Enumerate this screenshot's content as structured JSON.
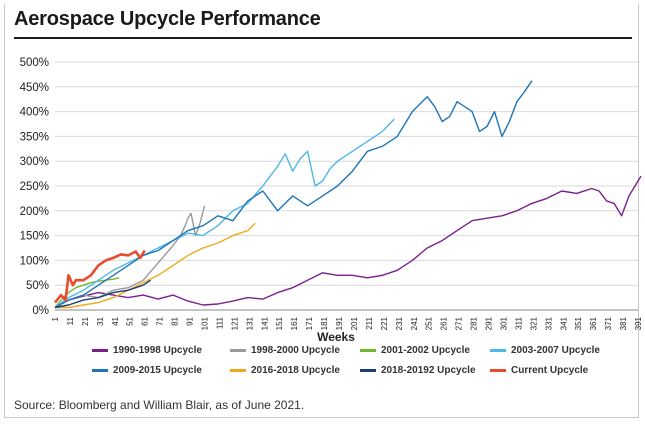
{
  "chart_data": {
    "type": "line",
    "title": "Aerospace Upcycle Performance",
    "xlabel": "Weeks",
    "ylabel": "",
    "xlim": [
      1,
      391
    ],
    "ylim": [
      0,
      500
    ],
    "x_ticks": [
      1,
      11,
      21,
      31,
      41,
      51,
      61,
      71,
      81,
      91,
      101,
      111,
      121,
      131,
      141,
      151,
      161,
      171,
      181,
      191,
      201,
      211,
      221,
      231,
      241,
      251,
      261,
      271,
      281,
      291,
      301,
      311,
      321,
      331,
      341,
      351,
      361,
      371,
      381,
      391
    ],
    "y_ticks": [
      0,
      50,
      100,
      150,
      200,
      250,
      300,
      350,
      400,
      450,
      500
    ],
    "y_tick_labels": [
      "0%",
      "50%",
      "100%",
      "150%",
      "200%",
      "250%",
      "300%",
      "350%",
      "400%",
      "450%",
      "500%"
    ],
    "grid": true,
    "legend_position": "bottom",
    "series": [
      {
        "name": "1990-1998 Upcycle",
        "color": "#7b1f8e",
        "x": [
          1,
          10,
          20,
          30,
          40,
          50,
          60,
          70,
          80,
          90,
          100,
          110,
          120,
          130,
          140,
          150,
          160,
          170,
          180,
          190,
          200,
          210,
          220,
          230,
          240,
          250,
          260,
          270,
          280,
          290,
          300,
          310,
          320,
          330,
          340,
          350,
          360,
          365,
          370,
          375,
          380,
          385,
          390,
          393
        ],
        "y": [
          5,
          20,
          28,
          35,
          30,
          25,
          30,
          22,
          30,
          18,
          10,
          12,
          18,
          25,
          22,
          35,
          45,
          60,
          75,
          70,
          70,
          65,
          70,
          80,
          100,
          125,
          140,
          160,
          180,
          185,
          190,
          200,
          215,
          225,
          240,
          235,
          245,
          240,
          220,
          215,
          190,
          230,
          255,
          270
        ]
      },
      {
        "name": "1998-2000 Upcycle",
        "color": "#9a9a9a",
        "x": [
          1,
          10,
          20,
          30,
          40,
          50,
          60,
          70,
          80,
          85,
          88,
          90,
          92,
          95,
          98,
          101
        ],
        "y": [
          5,
          20,
          30,
          25,
          40,
          45,
          60,
          95,
          130,
          150,
          170,
          185,
          195,
          150,
          175,
          210
        ]
      },
      {
        "name": "2001-2002 Upcycle",
        "color": "#76b82a",
        "x": [
          1,
          5,
          10,
          15,
          20,
          25,
          30,
          35,
          40,
          44
        ],
        "y": [
          5,
          20,
          35,
          45,
          50,
          55,
          58,
          60,
          62,
          65
        ]
      },
      {
        "name": "2003-2007 Upcycle",
        "color": "#4db7e8",
        "x": [
          1,
          10,
          20,
          30,
          40,
          50,
          60,
          70,
          80,
          90,
          100,
          110,
          120,
          130,
          140,
          150,
          155,
          160,
          165,
          170,
          175,
          180,
          185,
          190,
          195,
          200,
          210,
          220,
          228
        ],
        "y": [
          5,
          25,
          40,
          60,
          80,
          95,
          110,
          125,
          140,
          155,
          150,
          170,
          200,
          215,
          250,
          290,
          315,
          280,
          305,
          320,
          250,
          260,
          285,
          300,
          310,
          320,
          340,
          360,
          385
        ]
      },
      {
        "name": "2009-2015 Upcycle",
        "color": "#1f75b8",
        "x": [
          1,
          10,
          20,
          30,
          40,
          50,
          60,
          70,
          80,
          90,
          100,
          110,
          120,
          130,
          140,
          150,
          160,
          170,
          180,
          190,
          200,
          210,
          220,
          230,
          240,
          250,
          255,
          260,
          265,
          270,
          275,
          280,
          285,
          290,
          295,
          300,
          305,
          310,
          315,
          320
        ],
        "y": [
          5,
          20,
          30,
          50,
          70,
          90,
          110,
          120,
          140,
          160,
          170,
          190,
          180,
          220,
          240,
          200,
          230,
          210,
          230,
          250,
          280,
          320,
          330,
          350,
          400,
          430,
          410,
          380,
          390,
          420,
          410,
          400,
          360,
          370,
          400,
          350,
          380,
          420,
          440,
          462
        ]
      },
      {
        "name": "2016-2018 Upcycle",
        "color": "#f0a81c",
        "x": [
          1,
          10,
          20,
          30,
          40,
          50,
          60,
          70,
          80,
          90,
          100,
          110,
          120,
          130,
          135
        ],
        "y": [
          5,
          5,
          10,
          15,
          25,
          40,
          55,
          70,
          90,
          110,
          125,
          135,
          150,
          160,
          175
        ]
      },
      {
        "name": "2018-20192 Upcycle",
        "color": "#1c3f75",
        "x": [
          1,
          10,
          20,
          30,
          40,
          50,
          55,
          60,
          65
        ],
        "y": [
          5,
          10,
          20,
          25,
          35,
          40,
          45,
          50,
          60
        ]
      },
      {
        "name": "Current Upcycle",
        "color": "#e84c2b",
        "x": [
          1,
          5,
          8,
          10,
          13,
          15,
          20,
          25,
          30,
          35,
          40,
          45,
          50,
          55,
          58,
          60,
          61
        ],
        "y": [
          15,
          30,
          20,
          70,
          50,
          60,
          60,
          70,
          90,
          100,
          105,
          112,
          110,
          118,
          105,
          115,
          120
        ]
      }
    ]
  },
  "source": "Source: Bloomberg and William Blair, as of June 2021."
}
